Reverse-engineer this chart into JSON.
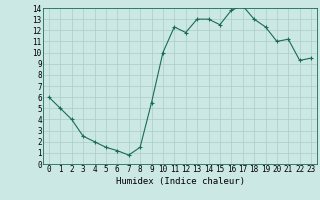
{
  "x": [
    0,
    1,
    2,
    3,
    4,
    5,
    6,
    7,
    8,
    9,
    10,
    11,
    12,
    13,
    14,
    15,
    16,
    17,
    18,
    19,
    20,
    21,
    22,
    23
  ],
  "y": [
    6.0,
    5.0,
    4.0,
    2.5,
    2.0,
    1.5,
    1.2,
    0.8,
    1.5,
    5.5,
    10.0,
    12.3,
    11.8,
    13.0,
    13.0,
    12.5,
    13.8,
    14.2,
    13.0,
    12.3,
    11.0,
    11.2,
    9.3,
    9.5
  ],
  "xlabel": "Humidex (Indice chaleur)",
  "xlim": [
    -0.5,
    23.5
  ],
  "ylim": [
    0,
    14
  ],
  "yticks": [
    0,
    1,
    2,
    3,
    4,
    5,
    6,
    7,
    8,
    9,
    10,
    11,
    12,
    13,
    14
  ],
  "xticks": [
    0,
    1,
    2,
    3,
    4,
    5,
    6,
    7,
    8,
    9,
    10,
    11,
    12,
    13,
    14,
    15,
    16,
    17,
    18,
    19,
    20,
    21,
    22,
    23
  ],
  "line_color": "#1a6b5a",
  "marker_color": "#1a6b5a",
  "bg_color": "#cce8e4",
  "grid_color": "#aaccc7",
  "tick_fontsize": 5.5,
  "label_fontsize": 6.5
}
